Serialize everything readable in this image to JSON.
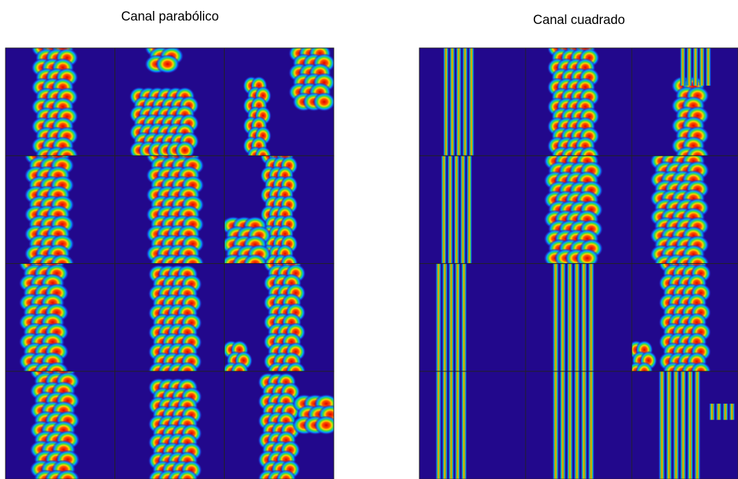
{
  "titles": {
    "left": "Canal parabólico",
    "right": "Canal cuadrado"
  }
}
